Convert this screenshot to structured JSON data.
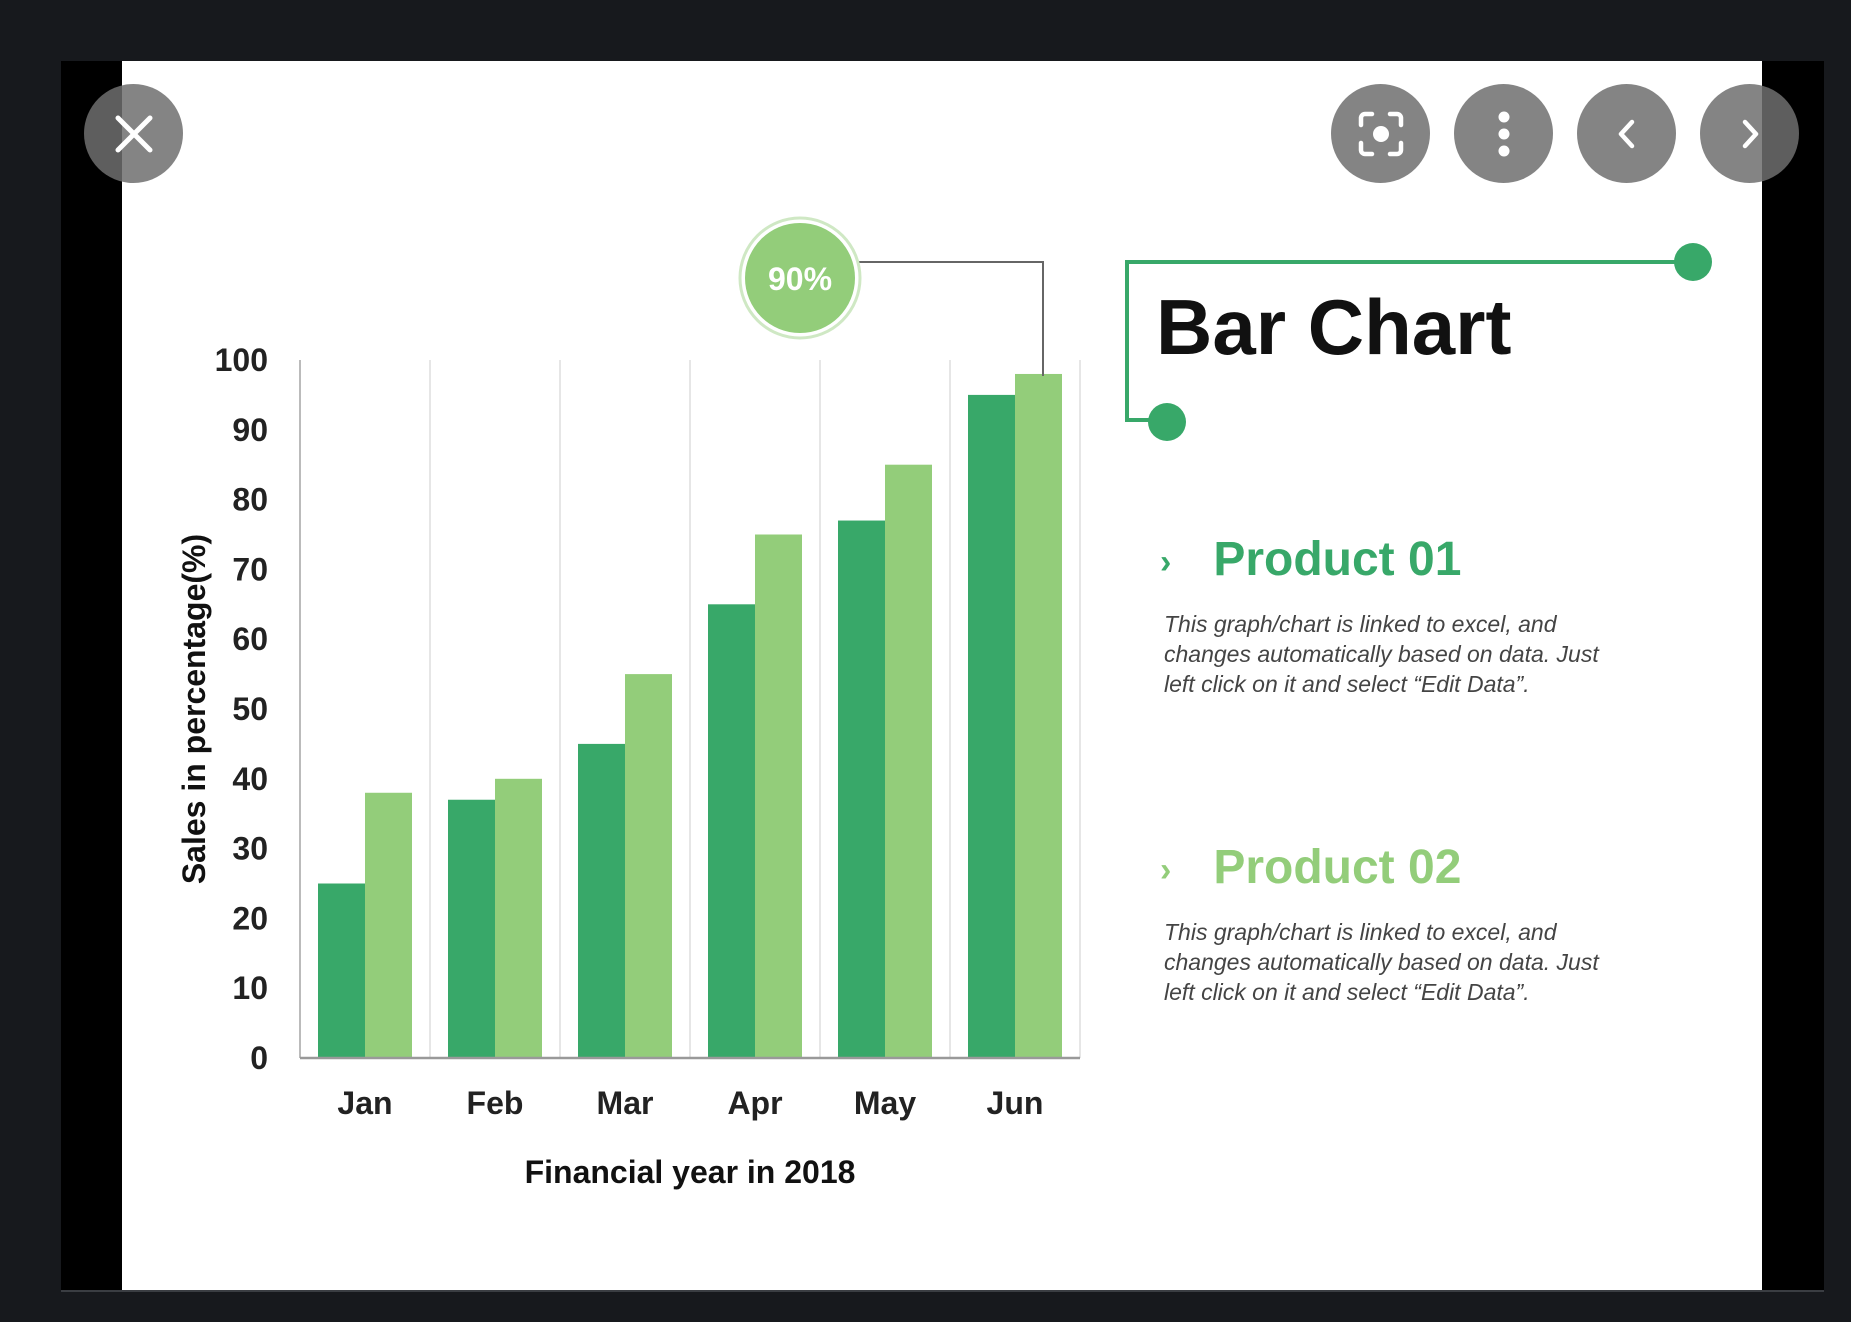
{
  "viewer": {
    "controls": {
      "close_icon": "close-icon",
      "lens_icon": "lens-icon",
      "more_icon": "more-vert-icon",
      "prev_icon": "chevron-left-icon",
      "next_icon": "chevron-right-icon"
    }
  },
  "colors": {
    "product01": "#38a869",
    "product02": "#93cd7a",
    "accent_line": "#38a869",
    "callout_fill": "#93cd7a"
  },
  "slide": {
    "title": "Bar Chart",
    "callout": "90%",
    "products": [
      {
        "name": "Product 01",
        "description": "This graph/chart is linked to excel, and changes automatically based on data. Just left click on it and select “Edit Data”."
      },
      {
        "name": "Product 02",
        "description": "This graph/chart is linked to excel, and changes automatically based on data. Just left click on it and select “Edit Data”."
      }
    ]
  },
  "chart_data": {
    "type": "bar",
    "categories": [
      "Jan",
      "Feb",
      "Mar",
      "Apr",
      "May",
      "Jun"
    ],
    "series": [
      {
        "name": "Product 01",
        "values": [
          25,
          37,
          45,
          65,
          77,
          95
        ]
      },
      {
        "name": "Product 02",
        "values": [
          38,
          40,
          55,
          75,
          85,
          98
        ]
      }
    ],
    "xlabel": "Financial year in 2018",
    "ylabel": "Sales in percentage(%)",
    "ylim": [
      0,
      100
    ],
    "yticks": [
      "0",
      "10",
      "20",
      "30",
      "40",
      "50",
      "60",
      "70",
      "80",
      "90",
      "100"
    ],
    "grid": "vertical"
  }
}
